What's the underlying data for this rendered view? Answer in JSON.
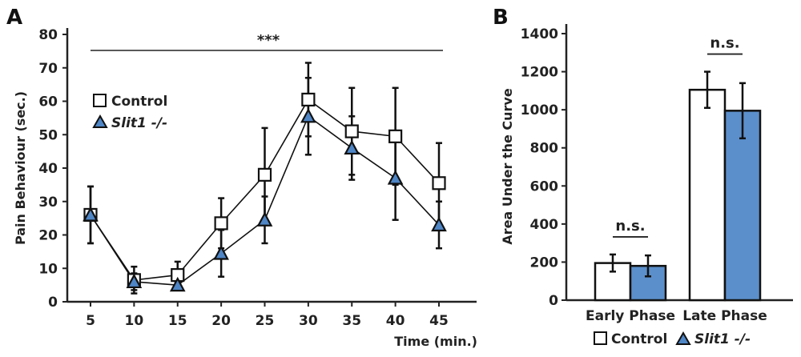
{
  "chart_data": [
    {
      "panel": "A",
      "type": "line",
      "title": "",
      "xlabel": "Time (min.)",
      "ylabel": "Pain Behaviour (sec.)",
      "x": [
        5,
        10,
        15,
        20,
        25,
        30,
        35,
        40,
        45
      ],
      "xticks": [
        "5",
        "10",
        "15",
        "20",
        "25",
        "30",
        "35",
        "40",
        "45"
      ],
      "ylim": [
        0,
        80
      ],
      "yticks": [
        "0",
        "10",
        "20",
        "30",
        "40",
        "50",
        "60",
        "70",
        "80"
      ],
      "grid": false,
      "legend": "upper-left",
      "annotation": "***",
      "series": [
        {
          "name": "Control",
          "marker": "square",
          "color": "#ffffff",
          "values": [
            26,
            6.5,
            8,
            23.5,
            38,
            60.5,
            51,
            49.5,
            35.5
          ],
          "errors": [
            8.5,
            4,
            4,
            7.5,
            14,
            11,
            13,
            14.5,
            12
          ]
        },
        {
          "name": "Slit1 -/-",
          "marker": "triangle",
          "color": "#4f86c6",
          "values": [
            26,
            6,
            5,
            14.5,
            24.5,
            55.5,
            46,
            37,
            23
          ],
          "errors": [
            8.5,
            2.5,
            1,
            7,
            7,
            11.5,
            9.5,
            12.5,
            7
          ]
        }
      ]
    },
    {
      "panel": "B",
      "type": "bar",
      "title": "",
      "xlabel": "",
      "ylabel": "Area Under the Curve",
      "categories": [
        "Early Phase",
        "Late Phase"
      ],
      "ylim": [
        0,
        1400
      ],
      "yticks": [
        "0",
        "200",
        "400",
        "600",
        "800",
        "1000",
        "1200",
        "1400"
      ],
      "grid": false,
      "legend": "bottom",
      "annotations": [
        "n.s.",
        "n.s."
      ],
      "series": [
        {
          "name": "Control",
          "color": "#ffffff",
          "values": [
            195,
            1105
          ],
          "errors": [
            45,
            95
          ]
        },
        {
          "name": "Slit1 -/-",
          "color": "#5b8fcb",
          "values": [
            180,
            995
          ],
          "errors": [
            55,
            145
          ]
        }
      ]
    }
  ],
  "panel_labels": [
    "A",
    "B"
  ],
  "legend_a": {
    "control": "Control",
    "slit": "Slit1 -/-"
  },
  "legend_b": {
    "control": "Control",
    "slit": "Slit1 -/-"
  }
}
